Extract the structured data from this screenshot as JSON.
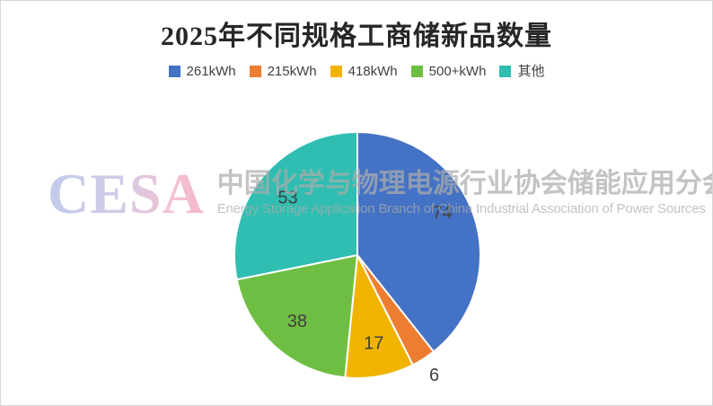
{
  "title": "2025年不同规格工商储新品数量",
  "legend": {
    "items": [
      {
        "label": "261kWh",
        "color": "#4472C4"
      },
      {
        "label": "215kWh",
        "color": "#ED7D31"
      },
      {
        "label": "418kWh",
        "color": "#F0B400"
      },
      {
        "label": "500+kWh",
        "color": "#6FBE44"
      },
      {
        "label": "其他",
        "color": "#2FBEB1"
      }
    ]
  },
  "chart_data": {
    "type": "pie",
    "title": "2025年不同规格工商储新品数量",
    "categories": [
      "261kWh",
      "215kWh",
      "418kWh",
      "500+kWh",
      "其他"
    ],
    "values": [
      74,
      6,
      17,
      38,
      53
    ],
    "total": 188,
    "colors": [
      "#4472C4",
      "#ED7D31",
      "#F0B400",
      "#6FBE44",
      "#2FBEB1"
    ],
    "start_angle": "12-oclock",
    "direction": "clockwise",
    "slice_border_color": "#ffffff",
    "value_label_color": "#404040",
    "legend_position": "top",
    "title_position": "top"
  },
  "watermark": {
    "logo_text": "CESA",
    "cn": "中国化学与物理电源行业协会储能应用分会",
    "en": "Energy Storage Application Branch of China Industrial Association of Power Sources",
    "logo_gradient_start": "#b7c3e9",
    "logo_gradient_end": "#f1a9c3",
    "text_color": "#acacac"
  }
}
